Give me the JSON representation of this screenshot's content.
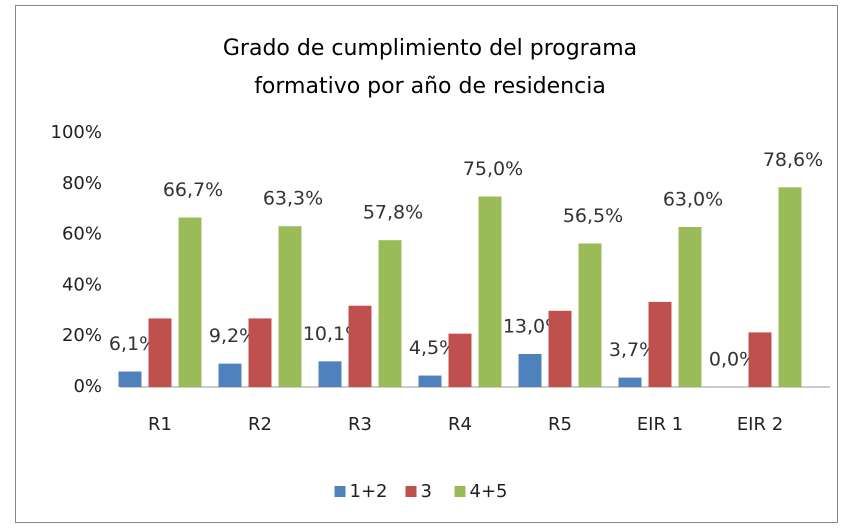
{
  "chart_data": {
    "type": "bar",
    "title": "Grado de cumplimiento del programa formativo por año de residencia",
    "categories": [
      "R1",
      "R2",
      "R3",
      "R4",
      "R5",
      "EIR 1",
      "EIR 2"
    ],
    "series": [
      {
        "name": "1+2",
        "color": "#4f81bd",
        "values": [
          6.1,
          9.2,
          10.1,
          4.5,
          13.0,
          3.7,
          0.0
        ],
        "value_labels": [
          "6,1%",
          "9,2%",
          "10,1%",
          "4,5%",
          "13,0%",
          "3,7%",
          "0,0%"
        ]
      },
      {
        "name": "3",
        "color": "#c0504d",
        "values": [
          27,
          27,
          32,
          21,
          30,
          33.5,
          21.5
        ]
      },
      {
        "name": "4+5",
        "color": "#9bbb59",
        "values": [
          66.7,
          63.3,
          57.8,
          75.0,
          56.5,
          63.0,
          78.6
        ],
        "value_labels": [
          "66,7%",
          "63,3%",
          "57,8%",
          "75,0%",
          "56,5%",
          "63,0%",
          "78,6%"
        ]
      }
    ],
    "ylim": [
      0,
      100
    ],
    "yticks": [
      {
        "value": 0,
        "label": "0%"
      },
      {
        "value": 20,
        "label": "20%"
      },
      {
        "value": 40,
        "label": "40%"
      },
      {
        "value": 60,
        "label": "60%"
      },
      {
        "value": 80,
        "label": "80%"
      },
      {
        "value": 100,
        "label": "100%"
      }
    ],
    "grid": false,
    "legend": "bottom"
  }
}
